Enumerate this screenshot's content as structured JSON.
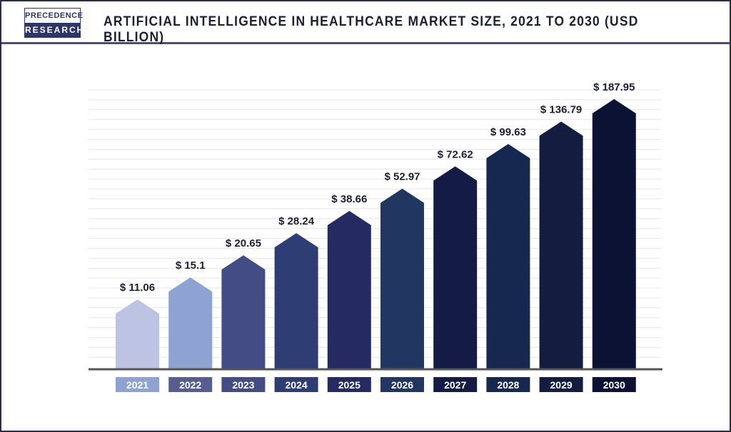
{
  "header": {
    "logo_top": "PRECEDENCE",
    "logo_bottom": "RESEARCH",
    "title": "ARTIFICIAL INTELLIGENCE IN HEALTHCARE MARKET SIZE, 2021 TO 2030 (USD BILLION)"
  },
  "chart_data": {
    "type": "bar",
    "title": "ARTIFICIAL INTELLIGENCE IN HEALTHCARE MARKET SIZE, 2021 TO 2030 (USD BILLION)",
    "categories": [
      "2021",
      "2022",
      "2023",
      "2024",
      "2025",
      "2026",
      "2027",
      "2028",
      "2029",
      "2030"
    ],
    "values": [
      11.06,
      15.1,
      20.65,
      28.24,
      38.66,
      52.97,
      72.62,
      99.63,
      136.79,
      187.95
    ],
    "data_labels": [
      "$ 11.06",
      "$ 15.1",
      "$ 20.65",
      "$ 28.24",
      "$ 38.66",
      "$ 52.97",
      "$ 72.62",
      "$ 99.63",
      "$ 136.79",
      "$ 187.95"
    ],
    "bar_shape": "arrow",
    "grid": true,
    "bar_colors": [
      "#bcc3e3",
      "#8ea3d2",
      "#434c85",
      "#2f3d75",
      "#252a62",
      "#213660",
      "#141c45",
      "#162850",
      "#131d40",
      "#0b1234"
    ],
    "label_box_colors": [
      "#8ea3d2",
      "#555e8e",
      "#434c85",
      "#2f3d75",
      "#252a62",
      "#213660",
      "#141c45",
      "#162850",
      "#131d40",
      "#0b1234"
    ]
  }
}
